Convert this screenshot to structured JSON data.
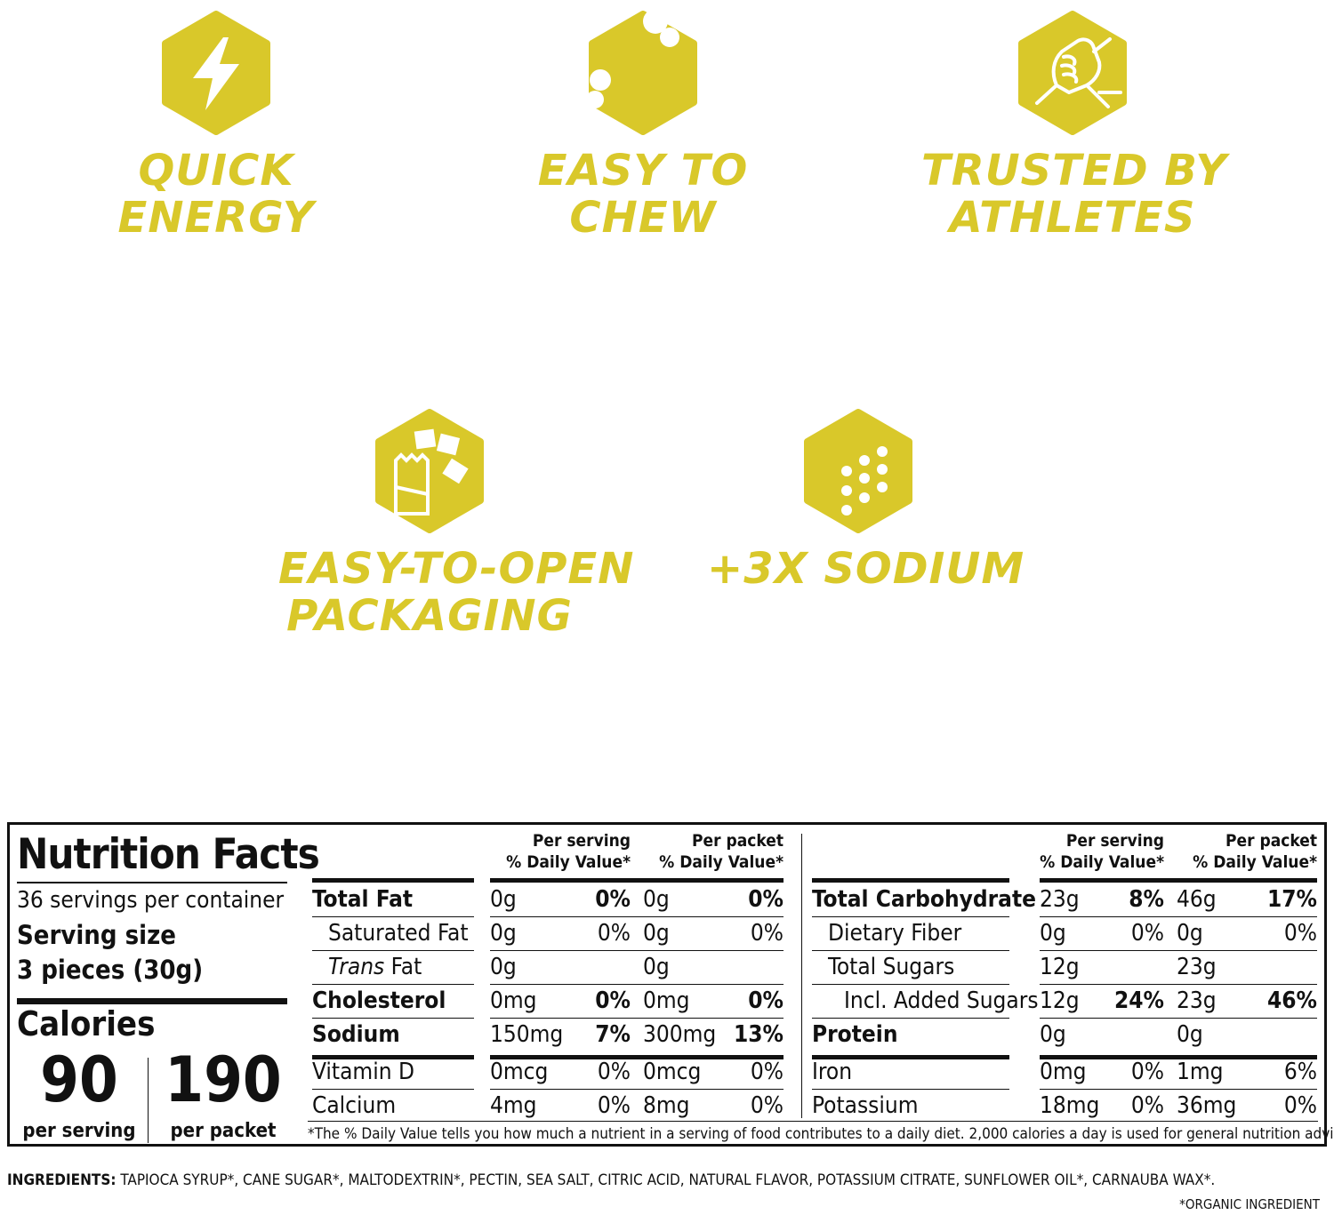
{
  "brand_color": "#d9c82a",
  "features": [
    {
      "icon": "lightning-bolt-icon",
      "lines": [
        "QUICK",
        "ENERGY"
      ]
    },
    {
      "icon": "bitten-chew-icon",
      "lines": [
        "EASY TO",
        "CHEW"
      ]
    },
    {
      "icon": "handshake-icon",
      "lines": [
        "TRUSTED BY",
        "ATHLETES"
      ]
    },
    {
      "icon": "packet-chews-icon",
      "lines": [
        "EASY-TO-OPEN",
        "PACKAGING"
      ]
    },
    {
      "icon": "salt-dots-icon",
      "lines": [
        "+3X SODIUM"
      ]
    }
  ],
  "nutrition": {
    "title": "Nutrition Facts",
    "servings": "36 servings per container",
    "serving_size_label": "Serving size",
    "serving_size_value": "3 pieces (30g)",
    "calories_label": "Calories",
    "calories_serving": "90",
    "calories_serving_label": "per serving",
    "calories_packet": "190",
    "calories_packet_label": "per packet",
    "col_per_serving": "Per serving",
    "col_per_packet": "Per packet",
    "col_dv": "% Daily Value*",
    "left_rows": [
      {
        "name": "Total Fat",
        "s_amt": "0g",
        "s_dv": "0%",
        "p_amt": "0g",
        "p_dv": "0%"
      },
      {
        "name": "Saturated Fat",
        "s_amt": "0g",
        "s_dv": "0%",
        "p_amt": "0g",
        "p_dv": "0%"
      },
      {
        "name": "Fat",
        "name_prefix": "Trans",
        "s_amt": "0g",
        "s_dv": "",
        "p_amt": "0g",
        "p_dv": ""
      },
      {
        "name": "Cholesterol",
        "s_amt": "0mg",
        "s_dv": "0%",
        "p_amt": "0mg",
        "p_dv": "0%"
      },
      {
        "name": "Sodium",
        "s_amt": "150mg",
        "s_dv": "7%",
        "p_amt": "300mg",
        "p_dv": "13%"
      },
      {
        "name": "Vitamin D",
        "s_amt": "0mcg",
        "s_dv": "0%",
        "p_amt": "0mcg",
        "p_dv": "0%"
      },
      {
        "name": "Calcium",
        "s_amt": "4mg",
        "s_dv": "0%",
        "p_amt": "8mg",
        "p_dv": "0%"
      }
    ],
    "right_rows": [
      {
        "name": "Total Carbohydrate",
        "s_amt": "23g",
        "s_dv": "8%",
        "p_amt": "46g",
        "p_dv": "17%"
      },
      {
        "name": "Dietary Fiber",
        "s_amt": "0g",
        "s_dv": "0%",
        "p_amt": "0g",
        "p_dv": "0%"
      },
      {
        "name": "Total Sugars",
        "s_amt": "12g",
        "s_dv": "",
        "p_amt": "23g",
        "p_dv": ""
      },
      {
        "name": "Incl. Added Sugars",
        "s_amt": "12g",
        "s_dv": "24%",
        "p_amt": "23g",
        "p_dv": "46%"
      },
      {
        "name": "Protein",
        "s_amt": "0g",
        "s_dv": "",
        "p_amt": "0g",
        "p_dv": ""
      },
      {
        "name": "Iron",
        "s_amt": "0mg",
        "s_dv": "0%",
        "p_amt": "1mg",
        "p_dv": "6%"
      },
      {
        "name": "Potassium",
        "s_amt": "18mg",
        "s_dv": "0%",
        "p_amt": "36mg",
        "p_dv": "0%"
      }
    ],
    "footnote": "*The % Daily Value tells you how much a nutrient in a serving of food contributes to a daily diet. 2,000 calories a day is used for general nutrition advice."
  },
  "ingredients_label": "INGREDIENTS:",
  "ingredients_text": "TAPIOCA SYRUP*, CANE SUGAR*, MALTODEXTRIN*, PECTIN, SEA SALT, CITRIC ACID, NATURAL FLAVOR, POTASSIUM CITRATE, SUNFLOWER OIL*, CARNAUBA WAX*.",
  "organic_note": "*ORGANIC INGREDIENT"
}
